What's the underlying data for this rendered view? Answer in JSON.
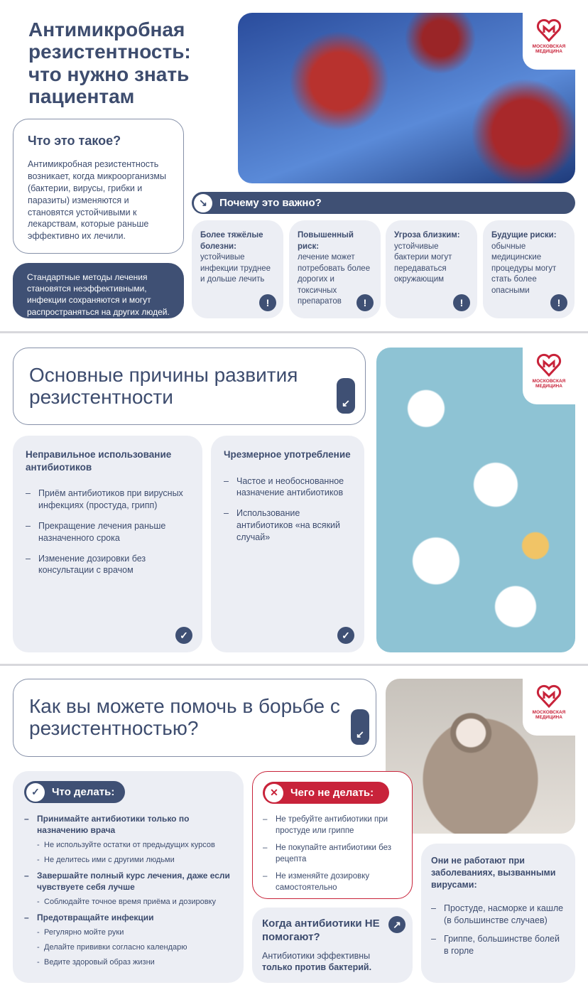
{
  "logo": {
    "line1": "МОСКОВСКАЯ",
    "line2": "МЕДИЦИНА"
  },
  "colors": {
    "navy": "#3f5074",
    "red": "#c8233a",
    "card": "#eceef4"
  },
  "slide1": {
    "title": "Антимикробная резистентность: что нужно знать пациентам",
    "what": {
      "heading": "Что это такое?",
      "text": "Антимикробная резистентность возникает, когда микроорганизмы (бактерии, вирусы, грибки и паразиты) изменяются и становятся устойчивыми к лекарствам, которые раньше эффективно их лечили."
    },
    "note": "Стандартные методы лечения становятся неэффективными, инфекции сохраняются и могут распространяться на других людей.",
    "why": {
      "label": "Почему это важно?",
      "icon": "arrow-down-right-icon"
    },
    "reasons": [
      {
        "title": "Более тяжёлые болезни:",
        "text": "устойчивые инфекции труднее и дольше лечить"
      },
      {
        "title": "Повышенный риск:",
        "text": "лечение может потребовать более дорогих и токсичных препаратов"
      },
      {
        "title": "Угроза близким:",
        "text": "устойчивые бактерии могут передаваться окружающим"
      },
      {
        "title": "Будущие риски:",
        "text": "обычные медицинские процедуры могут стать более опасными"
      }
    ],
    "badge": "!"
  },
  "slide2": {
    "title": "Основные причины развития резистентности",
    "cols": [
      {
        "heading": "Неправильное использование антибиотиков",
        "items": [
          "Приём антибиотиков при вирусных инфекциях (простуда, грипп)",
          "Прекращение лечения раньше назначенного срока",
          "Изменение дозировки без консультации с врачом"
        ]
      },
      {
        "heading": "Чрезмерное употребление",
        "items": [
          "Частое и необоснованное назначение антибиотиков",
          "Использование антибиотиков «на всякий случай»"
        ]
      }
    ]
  },
  "slide3": {
    "title": "Как вы можете помочь в борьбе с резистентностью?",
    "do": {
      "label": "Что делать:",
      "groups": [
        {
          "main": "Принимайте антибиотики только по назначению врача",
          "subs": [
            "Не используйте остатки от предыдущих курсов",
            "Не делитесь ими с другими людьми"
          ]
        },
        {
          "main": "Завершайте полный курс лечения, даже если чувствуете себя лучше",
          "subs": [
            "Соблюдайте точное время приёма и дозировку"
          ]
        },
        {
          "main": "Предотвращайте инфекции",
          "subs": [
            "Регулярно мойте руки",
            "Делайте прививки согласно календарю",
            "Ведите здоровый образ жизни"
          ]
        }
      ]
    },
    "dont": {
      "label": "Чего не делать:",
      "items": [
        "Не требуйте антибиотики при простуде или гриппе",
        "Не покупайте антибиотики без рецепта",
        "Не изменяйте дозировку самостоятельно"
      ]
    },
    "when": {
      "heading": "Когда антибиотики НЕ помогают?",
      "text": "Антибиотики эффективны",
      "bold": "только против бактерий."
    },
    "viruses": {
      "heading": "Они не работают при заболеваниях, вызванными вирусами:",
      "items": [
        "Простуде, насморке и кашле (в большинстве случаев)",
        "Гриппе, большинстве болей в горле"
      ]
    }
  }
}
